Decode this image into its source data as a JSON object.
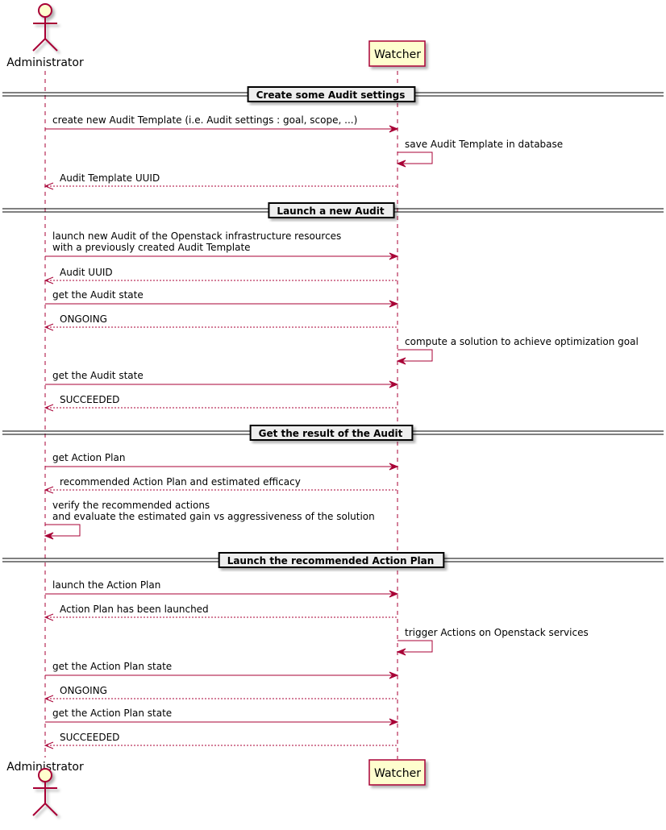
{
  "participants": {
    "actor": "Administrator",
    "system": "Watcher"
  },
  "colors": {
    "line": "#A80036",
    "participant_fill": "#FEFECE",
    "divider_fill": "#EEEEEE"
  },
  "steps": [
    {
      "kind": "divider",
      "label": "Create some Audit settings"
    },
    {
      "kind": "call",
      "lines": [
        "create new Audit Template (i.e. Audit settings : goal, scope, ...)"
      ]
    },
    {
      "kind": "self-system",
      "lines": [
        "save Audit Template in database"
      ]
    },
    {
      "kind": "return",
      "lines": [
        "Audit Template UUID"
      ]
    },
    {
      "kind": "divider",
      "label": "Launch a new Audit"
    },
    {
      "kind": "call",
      "lines": [
        "launch new Audit of the Openstack infrastructure resources",
        "with a previously created Audit Template"
      ]
    },
    {
      "kind": "return",
      "lines": [
        "Audit UUID"
      ]
    },
    {
      "kind": "call",
      "lines": [
        "get the Audit state"
      ]
    },
    {
      "kind": "return",
      "lines": [
        "ONGOING"
      ]
    },
    {
      "kind": "self-system",
      "lines": [
        "compute a solution to achieve optimization goal"
      ]
    },
    {
      "kind": "call",
      "lines": [
        "get the Audit state"
      ]
    },
    {
      "kind": "return",
      "lines": [
        "SUCCEEDED"
      ]
    },
    {
      "kind": "divider",
      "label": "Get the result of the Audit"
    },
    {
      "kind": "call",
      "lines": [
        "get Action Plan"
      ]
    },
    {
      "kind": "return",
      "lines": [
        "recommended Action Plan and estimated efficacy"
      ]
    },
    {
      "kind": "self-actor",
      "lines": [
        "verify the recommended actions",
        "and evaluate the estimated gain vs aggressiveness of the solution"
      ]
    },
    {
      "kind": "divider",
      "label": "Launch the recommended Action Plan"
    },
    {
      "kind": "call",
      "lines": [
        "launch the Action Plan"
      ]
    },
    {
      "kind": "return",
      "lines": [
        "Action Plan has been launched"
      ]
    },
    {
      "kind": "self-system",
      "lines": [
        "trigger Actions on Openstack services"
      ]
    },
    {
      "kind": "call",
      "lines": [
        "get the Action Plan state"
      ]
    },
    {
      "kind": "return",
      "lines": [
        "ONGOING"
      ]
    },
    {
      "kind": "call",
      "lines": [
        "get the Action Plan state"
      ]
    },
    {
      "kind": "return",
      "lines": [
        "SUCCEEDED"
      ]
    }
  ]
}
